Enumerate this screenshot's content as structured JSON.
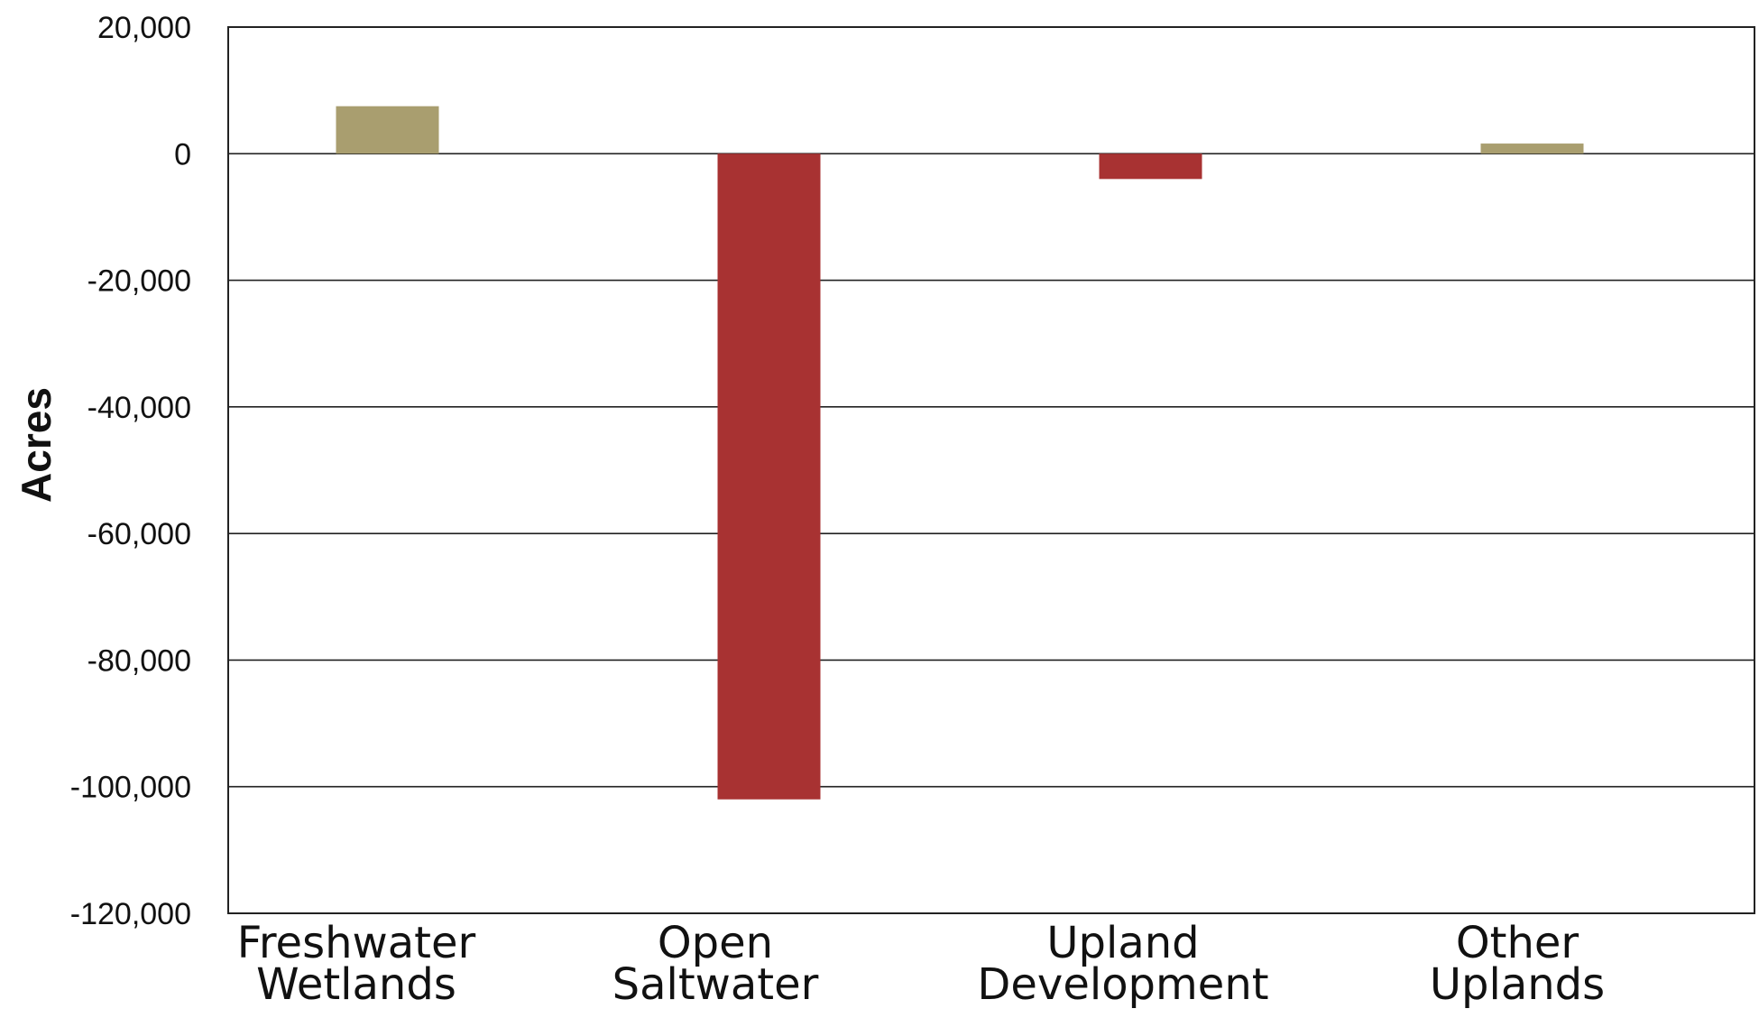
{
  "chart_data": {
    "type": "bar",
    "categories": [
      [
        "Freshwater",
        "Wetlands"
      ],
      [
        "Open",
        "Saltwater"
      ],
      [
        "Upland",
        "Development"
      ],
      [
        "Other",
        "Uplands"
      ]
    ],
    "values": [
      7500,
      -102000,
      -4000,
      1600
    ],
    "bar_colors": [
      "#a99e6f",
      "#a83232",
      "#a83232",
      "#a99e6f"
    ],
    "title": "",
    "xlabel": "",
    "ylabel": "Acres",
    "ylim": [
      -120000,
      20000
    ],
    "yticks": [
      20000,
      0,
      -20000,
      -40000,
      -60000,
      -80000,
      -100000,
      -120000
    ],
    "ytick_labels": [
      "20,000",
      "0",
      "-20,000",
      "-40,000",
      "-60,000",
      "-80,000",
      "-100,000",
      "-120,000"
    ],
    "grid": true,
    "legend": "none"
  }
}
